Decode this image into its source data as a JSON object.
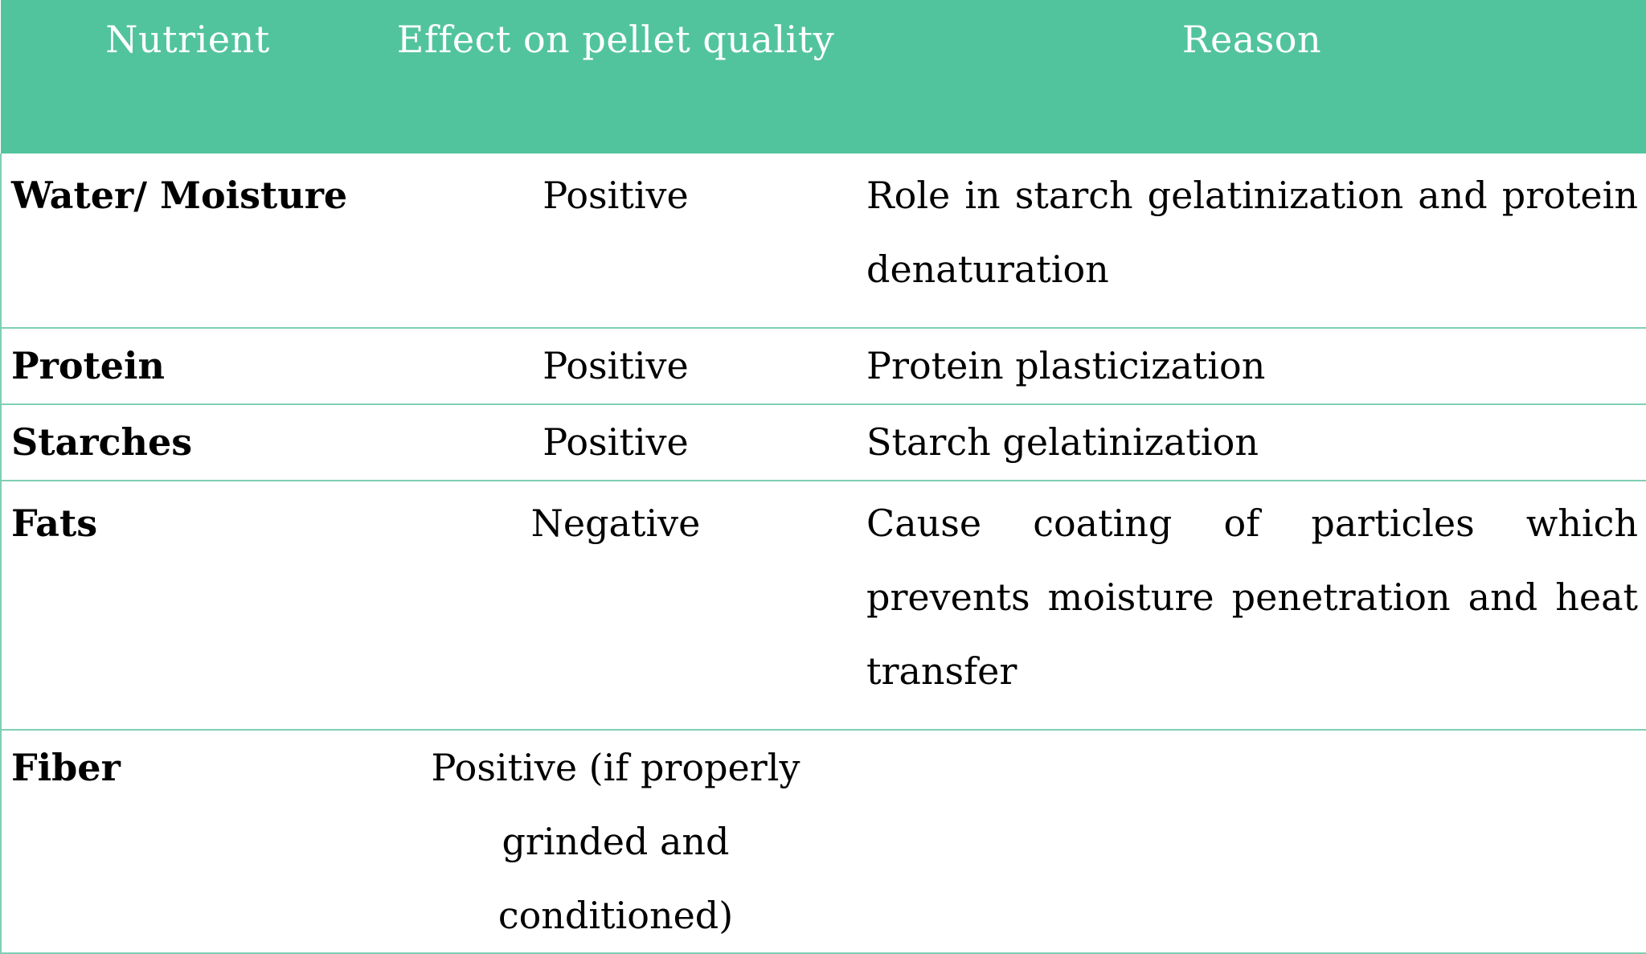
{
  "table": {
    "headers": [
      "Nutrient",
      "Effect on pellet quality",
      "Reason"
    ],
    "rows": [
      {
        "nutrient": "Water/ Moisture",
        "effect": "Positive",
        "reason": "Role in starch gelatinization and protein denaturation"
      },
      {
        "nutrient": "Protein",
        "effect": "Positive",
        "reason": "Protein plasticization"
      },
      {
        "nutrient": "Starches",
        "effect": "Positive",
        "reason": "Starch gelatinization"
      },
      {
        "nutrient": "Fats",
        "effect": "Negative",
        "reason": "Cause coating of particles which prevents moisture penetration and heat transfer"
      },
      {
        "nutrient": "Fiber",
        "effect": "Positive (if properly grinded and conditioned)",
        "reason": ""
      }
    ]
  },
  "colors": {
    "header_background": "#52c49d",
    "header_text": "#ffffff",
    "grid_line": "#7fcfb3"
  }
}
